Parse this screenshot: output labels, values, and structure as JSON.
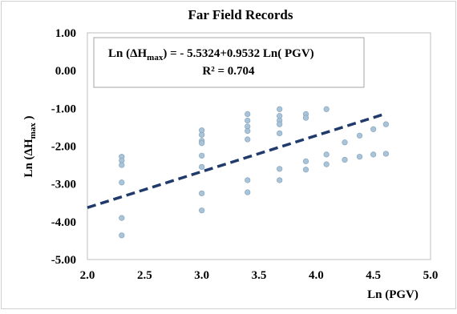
{
  "chart_data": {
    "type": "scatter",
    "title": "Far Field Records",
    "xlabel": "Ln (PGV)",
    "ylabel_parts": {
      "main": "Ln  (ΔH",
      "sub": "max",
      "end": " )"
    },
    "equation_parts": {
      "lhs": "Ln  (ΔH",
      "sub": "max",
      "rhs": ") = - 5.5324+0.9532 Ln( PGV)"
    },
    "r2_label": "R² = 0.704",
    "xlim": [
      2.0,
      5.0
    ],
    "ylim": [
      -5.0,
      1.0
    ],
    "x_ticks": [
      "2.0",
      "2.5",
      "3.0",
      "3.5",
      "4.0",
      "4.5",
      "5.0"
    ],
    "y_ticks": [
      "1.00",
      "0.00",
      "-1.00",
      "-2.00",
      "-3.00",
      "-4.00",
      "-5.00"
    ],
    "grid": false,
    "legend": "none",
    "colors": {
      "points": "#a9c4d9",
      "point_stroke": "#7f9fb8",
      "trendline": "#1f3a6b"
    },
    "trendline": {
      "intercept": -5.5324,
      "slope": 0.9532,
      "x_range": [
        2.0,
        4.6
      ]
    },
    "points": [
      {
        "x": 2.3,
        "y": -2.28
      },
      {
        "x": 2.3,
        "y": -2.38
      },
      {
        "x": 2.3,
        "y": -2.5
      },
      {
        "x": 2.3,
        "y": -2.96
      },
      {
        "x": 2.3,
        "y": -3.9
      },
      {
        "x": 2.3,
        "y": -4.36
      },
      {
        "x": 3.0,
        "y": -1.58
      },
      {
        "x": 3.0,
        "y": -1.7
      },
      {
        "x": 3.0,
        "y": -1.86
      },
      {
        "x": 3.0,
        "y": -1.92
      },
      {
        "x": 3.0,
        "y": -2.25
      },
      {
        "x": 3.0,
        "y": -2.55
      },
      {
        "x": 3.0,
        "y": -3.25
      },
      {
        "x": 3.0,
        "y": -3.7
      },
      {
        "x": 3.4,
        "y": -1.15
      },
      {
        "x": 3.4,
        "y": -1.32
      },
      {
        "x": 3.4,
        "y": -1.48
      },
      {
        "x": 3.4,
        "y": -1.6
      },
      {
        "x": 3.4,
        "y": -1.82
      },
      {
        "x": 3.4,
        "y": -2.9
      },
      {
        "x": 3.4,
        "y": -3.22
      },
      {
        "x": 3.68,
        "y": -1.02
      },
      {
        "x": 3.68,
        "y": -1.2
      },
      {
        "x": 3.68,
        "y": -1.32
      },
      {
        "x": 3.68,
        "y": -1.42
      },
      {
        "x": 3.68,
        "y": -1.66
      },
      {
        "x": 3.68,
        "y": -2.6
      },
      {
        "x": 3.68,
        "y": -2.9
      },
      {
        "x": 3.91,
        "y": -1.15
      },
      {
        "x": 3.91,
        "y": -1.25
      },
      {
        "x": 3.91,
        "y": -2.4
      },
      {
        "x": 3.91,
        "y": -2.62
      },
      {
        "x": 4.09,
        "y": -1.02
      },
      {
        "x": 4.09,
        "y": -2.22
      },
      {
        "x": 4.09,
        "y": -2.48
      },
      {
        "x": 4.25,
        "y": -1.9
      },
      {
        "x": 4.25,
        "y": -2.36
      },
      {
        "x": 4.38,
        "y": -1.72
      },
      {
        "x": 4.38,
        "y": -2.28
      },
      {
        "x": 4.5,
        "y": -1.55
      },
      {
        "x": 4.5,
        "y": -2.22
      },
      {
        "x": 4.61,
        "y": -1.42
      },
      {
        "x": 4.61,
        "y": -2.2
      }
    ]
  }
}
